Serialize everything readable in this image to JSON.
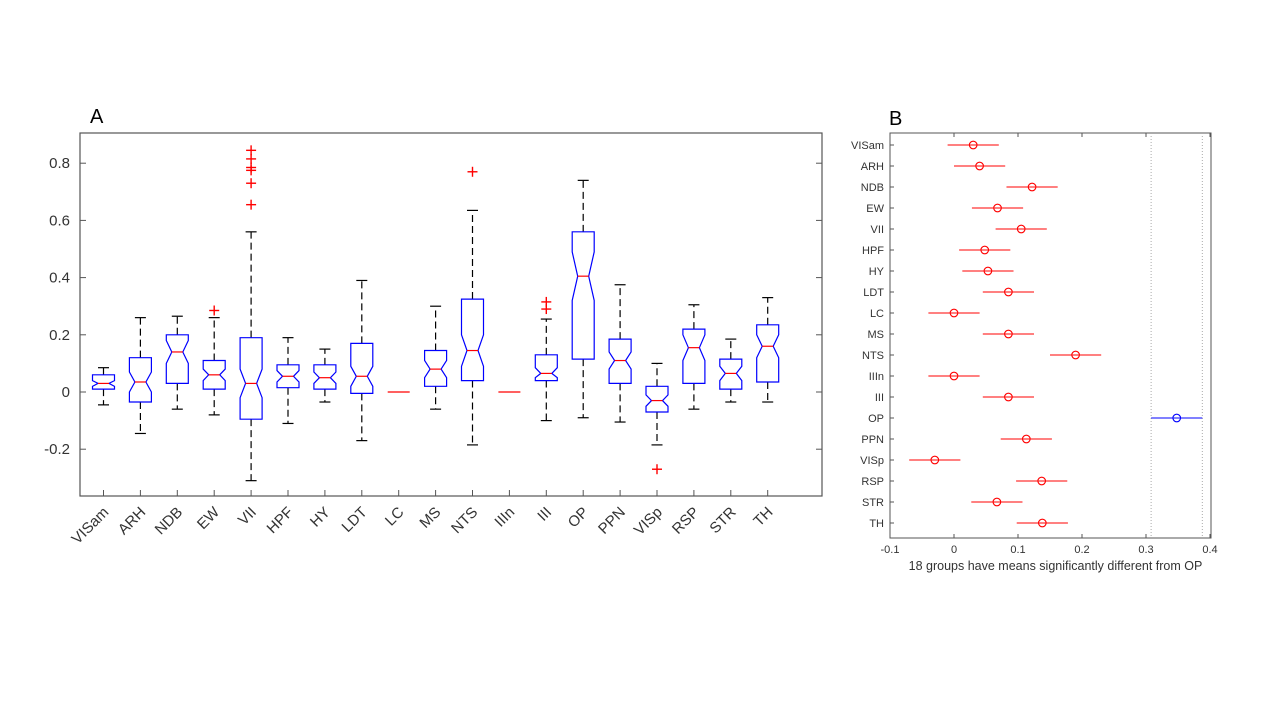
{
  "panels": {
    "a": "A",
    "b": "B"
  },
  "chart_data": [
    {
      "type": "boxplot",
      "panel": "A",
      "notched": true,
      "categories": [
        "VISam",
        "ARH",
        "NDB",
        "EW",
        "VII",
        "HPF",
        "HY",
        "LDT",
        "LC",
        "MS",
        "NTS",
        "IIIn",
        "III",
        "OP",
        "PPN",
        "VISp",
        "RSP",
        "STR",
        "TH"
      ],
      "ylim": [
        -0.36,
        0.9
      ],
      "yticks": [
        -0.2,
        0,
        0.2,
        0.4,
        0.6,
        0.8
      ],
      "ytick_labels": [
        "-0.2",
        "0",
        "0.2",
        "0.4",
        "0.6",
        "0.8"
      ],
      "boxes": [
        {
          "wl": -0.045,
          "q1": 0.01,
          "med": 0.03,
          "q3": 0.06,
          "wh": 0.085,
          "nl": 0.02,
          "nh": 0.04,
          "out": []
        },
        {
          "wl": -0.145,
          "q1": -0.035,
          "med": 0.035,
          "q3": 0.12,
          "wh": 0.26,
          "nl": 0.0,
          "nh": 0.07,
          "out": []
        },
        {
          "wl": -0.06,
          "q1": 0.03,
          "med": 0.14,
          "q3": 0.2,
          "wh": 0.265,
          "nl": 0.1,
          "nh": 0.18,
          "out": []
        },
        {
          "wl": -0.08,
          "q1": 0.01,
          "med": 0.06,
          "q3": 0.11,
          "wh": 0.26,
          "nl": 0.04,
          "nh": 0.08,
          "out": [
            0.285
          ]
        },
        {
          "wl": -0.31,
          "q1": -0.095,
          "med": 0.03,
          "q3": 0.19,
          "wh": 0.56,
          "nl": -0.02,
          "nh": 0.08,
          "out": [
            0.655,
            0.73,
            0.775,
            0.785,
            0.815,
            0.845
          ]
        },
        {
          "wl": -0.11,
          "q1": 0.015,
          "med": 0.055,
          "q3": 0.095,
          "wh": 0.19,
          "nl": 0.035,
          "nh": 0.075,
          "out": []
        },
        {
          "wl": -0.035,
          "q1": 0.01,
          "med": 0.05,
          "q3": 0.095,
          "wh": 0.15,
          "nl": 0.03,
          "nh": 0.07,
          "out": []
        },
        {
          "wl": -0.17,
          "q1": -0.005,
          "med": 0.055,
          "q3": 0.17,
          "wh": 0.39,
          "nl": 0.02,
          "nh": 0.09,
          "out": []
        },
        {
          "wl": 0,
          "q1": 0,
          "med": 0,
          "q3": 0,
          "wh": 0,
          "nl": 0,
          "nh": 0,
          "out": []
        },
        {
          "wl": -0.06,
          "q1": 0.02,
          "med": 0.08,
          "q3": 0.145,
          "wh": 0.3,
          "nl": 0.05,
          "nh": 0.11,
          "out": []
        },
        {
          "wl": -0.185,
          "q1": 0.04,
          "med": 0.145,
          "q3": 0.325,
          "wh": 0.635,
          "nl": 0.09,
          "nh": 0.2,
          "out": [
            0.77
          ]
        },
        {
          "wl": 0,
          "q1": 0,
          "med": 0,
          "q3": 0,
          "wh": 0,
          "nl": 0,
          "nh": 0,
          "out": []
        },
        {
          "wl": -0.1,
          "q1": 0.04,
          "med": 0.065,
          "q3": 0.13,
          "wh": 0.255,
          "nl": 0.05,
          "nh": 0.085,
          "out": [
            0.29,
            0.315
          ]
        },
        {
          "wl": -0.09,
          "q1": 0.115,
          "med": 0.405,
          "q3": 0.56,
          "wh": 0.74,
          "nl": 0.32,
          "nh": 0.49,
          "out": []
        },
        {
          "wl": -0.105,
          "q1": 0.03,
          "med": 0.11,
          "q3": 0.185,
          "wh": 0.375,
          "nl": 0.08,
          "nh": 0.14,
          "out": []
        },
        {
          "wl": -0.185,
          "q1": -0.07,
          "med": -0.03,
          "q3": 0.02,
          "wh": 0.1,
          "nl": -0.05,
          "nh": -0.01,
          "out": [
            -0.27
          ]
        },
        {
          "wl": -0.06,
          "q1": 0.03,
          "med": 0.155,
          "q3": 0.22,
          "wh": 0.305,
          "nl": 0.11,
          "nh": 0.2,
          "out": []
        },
        {
          "wl": -0.035,
          "q1": 0.01,
          "med": 0.065,
          "q3": 0.115,
          "wh": 0.185,
          "nl": 0.04,
          "nh": 0.09,
          "out": []
        },
        {
          "wl": -0.035,
          "q1": 0.035,
          "med": 0.16,
          "q3": 0.235,
          "wh": 0.33,
          "nl": 0.12,
          "nh": 0.2,
          "out": []
        }
      ]
    },
    {
      "type": "multiple-comparison",
      "panel": "B",
      "groups": [
        "VISam",
        "ARH",
        "NDB",
        "EW",
        "VII",
        "HPF",
        "HY",
        "LDT",
        "LC",
        "MS",
        "NTS",
        "IIIn",
        "III",
        "OP",
        "PPN",
        "VISp",
        "RSP",
        "STR",
        "TH"
      ],
      "means": [
        0.03,
        0.04,
        0.122,
        0.068,
        0.105,
        0.048,
        0.053,
        0.085,
        0.0,
        0.085,
        0.19,
        0.0,
        0.085,
        0.348,
        0.113,
        -0.03,
        0.137,
        0.067,
        0.138
      ],
      "half_width": 0.04,
      "reference_group": "OP",
      "reference_interval": [
        0.308,
        0.388
      ],
      "xlim": [
        -0.1,
        0.4
      ],
      "xticks": [
        -0.1,
        0,
        0.1,
        0.2,
        0.3,
        0.4
      ],
      "xtick_labels": [
        "-0.1",
        "0",
        "0.1",
        "0.2",
        "0.3",
        "0.4"
      ],
      "xlabel": "18 groups have means significantly different from OP"
    }
  ]
}
